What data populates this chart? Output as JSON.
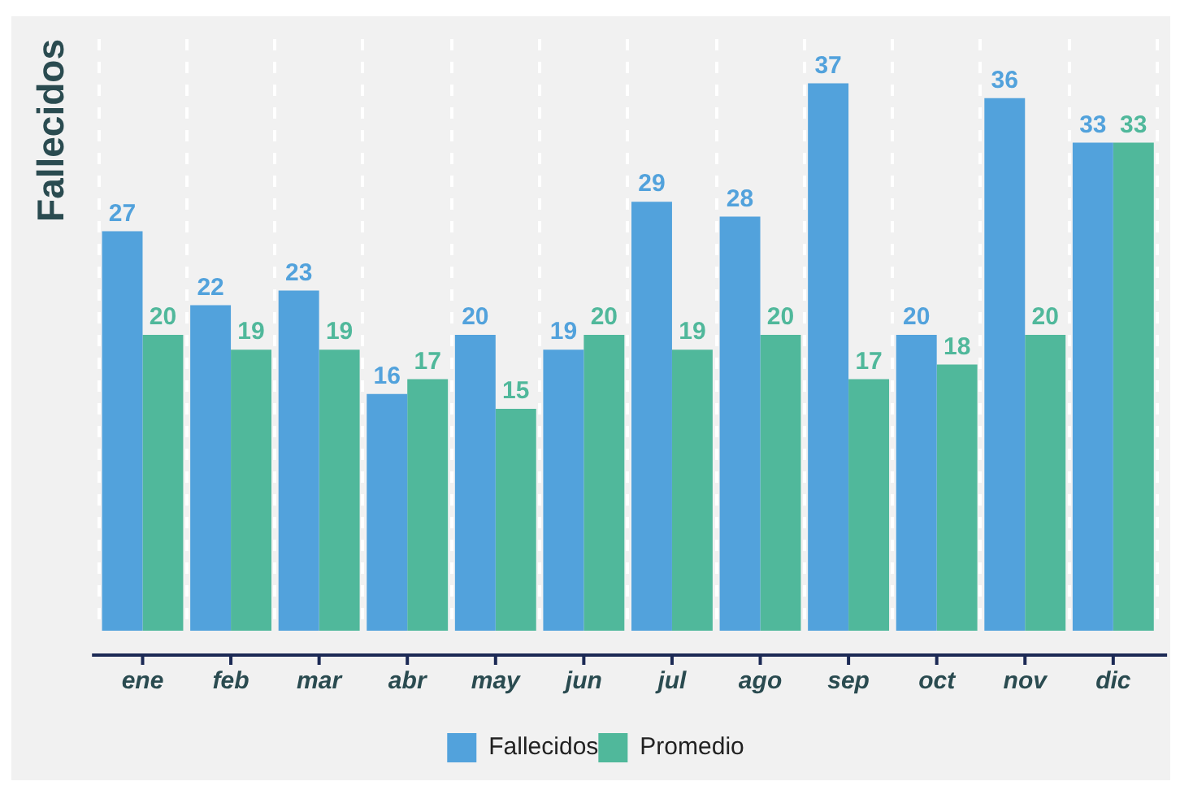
{
  "chart_data": {
    "type": "bar",
    "ylabel": "Fallecidos",
    "categories": [
      "ene",
      "feb",
      "mar",
      "abr",
      "may",
      "jun",
      "jul",
      "ago",
      "sep",
      "oct",
      "nov",
      "dic"
    ],
    "series": [
      {
        "name": "Fallecidos",
        "color": "#52a2dc",
        "values": [
          27,
          22,
          23,
          16,
          20,
          19,
          29,
          28,
          37,
          20,
          36,
          33
        ]
      },
      {
        "name": "Promedio",
        "color": "#50b89b",
        "values": [
          20,
          19,
          19,
          17,
          15,
          20,
          19,
          20,
          17,
          18,
          20,
          33
        ]
      }
    ],
    "data_labels": true,
    "legend": "bottom",
    "tick_labels": "x",
    "grid": "x"
  }
}
